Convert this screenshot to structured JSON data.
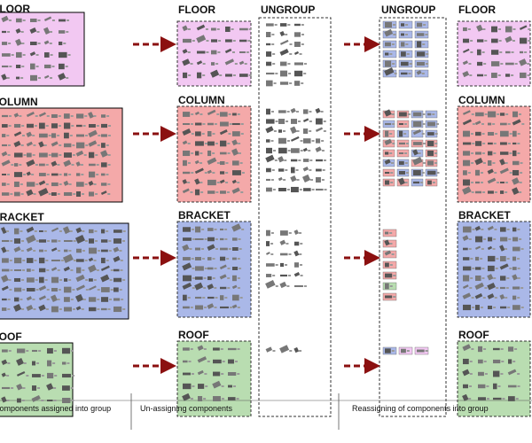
{
  "original_groups": {
    "labels": [
      "FLOOR",
      "COLUMN",
      "BRACKET",
      "ROOF"
    ]
  },
  "unassigned_groups": {
    "labels": [
      "FLOOR",
      "COLUMN",
      "BRACKET",
      "ROOF"
    ]
  },
  "ungroup_left": {
    "label": "UNGROUP"
  },
  "ungroup_right": {
    "label": "UNGROUP"
  },
  "reassigned_groups": {
    "labels": [
      "FLOOR",
      "COLUMN",
      "BRACKET",
      "ROOF"
    ]
  },
  "captions": [
    "Components assigned into group",
    "Un-assigning components",
    "Reassigning of components into group"
  ]
}
